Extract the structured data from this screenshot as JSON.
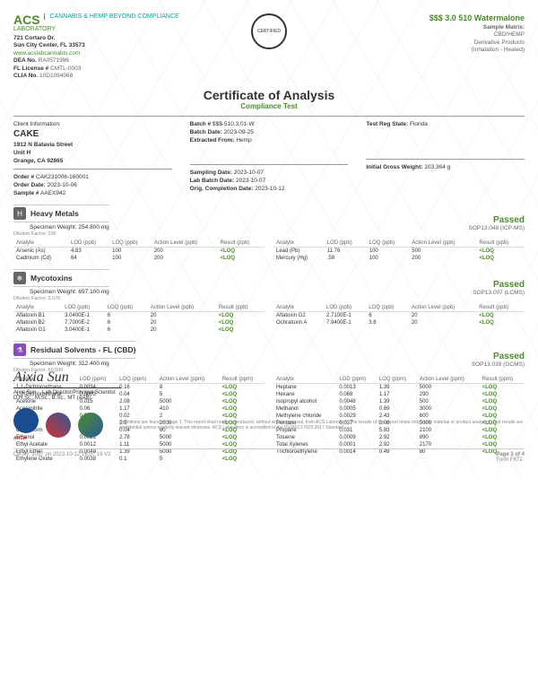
{
  "lab": {
    "name": "ACS",
    "nameSub": "LABORATORY",
    "tagline": "CANNABIS & HEMP\nBEYOND COMPLIANCE",
    "addr1": "721 Cortaro Dr.",
    "addr2": "Sun City Center, FL 33573",
    "web": "www.acslabcannabis.com",
    "dea": "RA0571996",
    "fl": "CMTL-0003",
    "clia": "10D1094068"
  },
  "product": {
    "name": "$$$ 3.0 510 Watermalone",
    "matrix": "Sample Matrix:",
    "type": "CBD/HEMP",
    "deriv": "Derivative Products",
    "method": "(Inhalation - Heated)"
  },
  "title": "Certificate of Analysis",
  "subtitle": "Compliance Test",
  "client": {
    "label": "Client Information:",
    "name": "CAKE",
    "addr1": "1912 N Batavia Street",
    "addr2": "Unit H",
    "addr3": "Orange, CA 92865",
    "order": "CAK231006-160001",
    "orderDate": "2023-10-06",
    "sample": "AAEX942"
  },
  "batch": {
    "batchNum": "$$$-510.3.01-W",
    "batchDate": "2023-09-25",
    "extractFrom": "Hemp",
    "sampDate": "2023-10-07",
    "labBatchDate": "2023-10-07",
    "compDate": "2023-10-12",
    "testReg": "Florida",
    "gross": "103.364 g"
  },
  "metals": {
    "title": "Heavy Metals",
    "specWt": "Specimen Weight: 254.800 mg",
    "dil": "Dilution Factor: 196",
    "pass": "Passed",
    "sop": "SOP13.048 (ICP-MS)",
    "cols": [
      "Analyte",
      "LOD (ppb)",
      "LOQ (ppb)",
      "Action Level (ppb)",
      "Result (ppb)"
    ],
    "left": [
      [
        "Arsenic (As)",
        "4.83",
        "100",
        "200",
        "<LOQ"
      ],
      [
        "Cadmium (Cd)",
        "64",
        "100",
        "200",
        "<LOQ"
      ]
    ],
    "right": [
      [
        "Lead (Pb)",
        "11.76",
        "100",
        "500",
        "<LOQ"
      ],
      [
        "Mercury (Hg)",
        ".58",
        "100",
        "200",
        "<LOQ"
      ]
    ]
  },
  "myco": {
    "title": "Mycotoxins",
    "specWt": "Specimen Weight: 697.100 mg",
    "dil": "Dilution Factor: 3.570",
    "pass": "Passed",
    "sop": "SOP13.007 (LCMS)",
    "cols": [
      "Analyte",
      "LOD (ppb)",
      "LOQ (ppb)",
      "Action Level (ppb)",
      "Result (ppb)"
    ],
    "left": [
      [
        "Aflatoxin B1",
        "3.0400E-1",
        "6",
        "20",
        "<LOQ"
      ],
      [
        "Aflatoxin B2",
        "7.7000E-2",
        "6",
        "20",
        "<LOQ"
      ],
      [
        "Aflatoxin G1",
        "3.0400E-1",
        "6",
        "20",
        "<LOQ"
      ]
    ],
    "right": [
      [
        "Aflatoxin G2",
        "2.7100E-1",
        "6",
        "20",
        "<LOQ"
      ],
      [
        "Ochratoxin A",
        "7.9400E-1",
        "3.8",
        "20",
        "<LOQ"
      ]
    ]
  },
  "solv": {
    "title": "Residual Solvents - FL (CBD)",
    "specWt": "Specimen Weight: 312.400 mg",
    "dil": "Dilution Factor: 50.000",
    "pass": "Passed",
    "sop": "SOP13.039 (GCMS)",
    "cols": [
      "Analyte",
      "LOD (ppm)",
      "LOQ (ppm)",
      "Action Level (ppm)",
      "Result (ppm)"
    ],
    "left": [
      [
        "1,1-Dichloroethane",
        "0.0094",
        "0.16",
        "8",
        "<LOQ"
      ],
      [
        "1,2-Dichloroethane",
        "0.0003",
        "0.04",
        "5",
        "<LOQ"
      ],
      [
        "Acetone",
        "0.015",
        "2.08",
        "5000",
        "<LOQ"
      ],
      [
        "Acetonitrile",
        "0.06",
        "1.17",
        "410",
        "<LOQ"
      ],
      [
        "Benzene",
        "0.0002",
        "0.02",
        "2",
        "<LOQ"
      ],
      [
        "Butanes",
        "0.0167",
        "2.5",
        "2000",
        "<LOQ"
      ],
      [
        "Chloroform",
        "0.0001",
        "0.04",
        "60",
        "<LOQ"
      ],
      [
        "Ethanol",
        "0.0021",
        "2.78",
        "5000",
        "<LOQ"
      ],
      [
        "Ethyl Acetate",
        "0.0012",
        "1.11",
        "5000",
        "<LOQ"
      ],
      [
        "Ethyl Ether",
        "0.0049",
        "1.39",
        "5000",
        "<LOQ"
      ],
      [
        "Ethylene Oxide",
        "0.0038",
        "0.1",
        "5",
        "<LOQ"
      ]
    ],
    "right": [
      [
        "Heptane",
        "0.0013",
        "1.39",
        "5000",
        "<LOQ"
      ],
      [
        "Hexane",
        "0.068",
        "1.17",
        "290",
        "<LOQ"
      ],
      [
        "Isopropyl alcohol",
        "0.0048",
        "1.39",
        "500",
        "<LOQ"
      ],
      [
        "Methanol",
        "0.0005",
        "0.69",
        "3000",
        "<LOQ"
      ],
      [
        "Methylene chloride",
        "0.0029",
        "2.43",
        "600",
        "<LOQ"
      ],
      [
        "Pentane",
        "0.037",
        "2.08",
        "5000",
        "<LOQ"
      ],
      [
        "Propane",
        "0.031",
        "5.83",
        "2100",
        "<LOQ"
      ],
      [
        "Toluene",
        "0.0009",
        "2.92",
        "890",
        "<LOQ"
      ],
      [
        "Total Xylenes",
        "0.0001",
        "2.92",
        "2170",
        "<LOQ"
      ],
      [
        "Trichloroethylene",
        "0.0014",
        "0.49",
        "80",
        "<LOQ"
      ]
    ]
  },
  "sig": {
    "name": "Aixia Sun",
    "title": "Lab Director/Principal Scientist",
    "cred": "D.H.Sc., M.Sc., B.Sc., MT (AAB)"
  },
  "disclaimer": "Definitions are found on page 1.\nThis report shall not be reproduced, without written approval, from ACS Laboratory. The results of this report relate only to the material or product analyzed. Test results are confidential unless explicitly waived otherwise. ACS Laboratory is accredited to the ISO/IEC17025:2017 Standard.",
  "footer": {
    "qa": "QA By: 1057 on 2023-10-12 16:07:19 V2",
    "page": "Page 3 of 4",
    "form": "Form F672"
  }
}
